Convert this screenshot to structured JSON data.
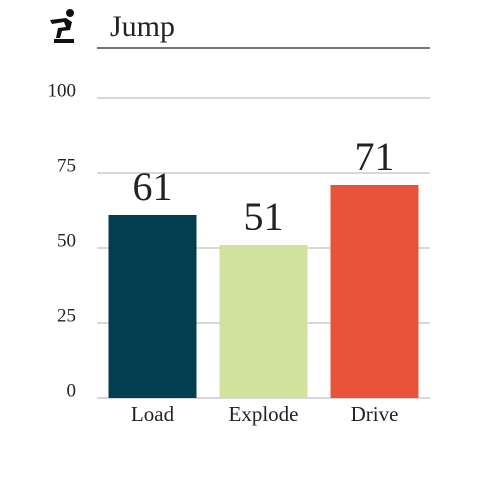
{
  "chart_data": {
    "type": "bar",
    "title": "Jump",
    "categories": [
      "Load",
      "Explode",
      "Drive"
    ],
    "series": [
      {
        "values": [
          61,
          51,
          71
        ],
        "colors": [
          "#033d50",
          "#d1e29f",
          "#e8533a"
        ]
      }
    ],
    "ylim": [
      0,
      100
    ],
    "yticks": [
      0,
      25,
      50,
      75,
      100
    ],
    "grid": true
  }
}
